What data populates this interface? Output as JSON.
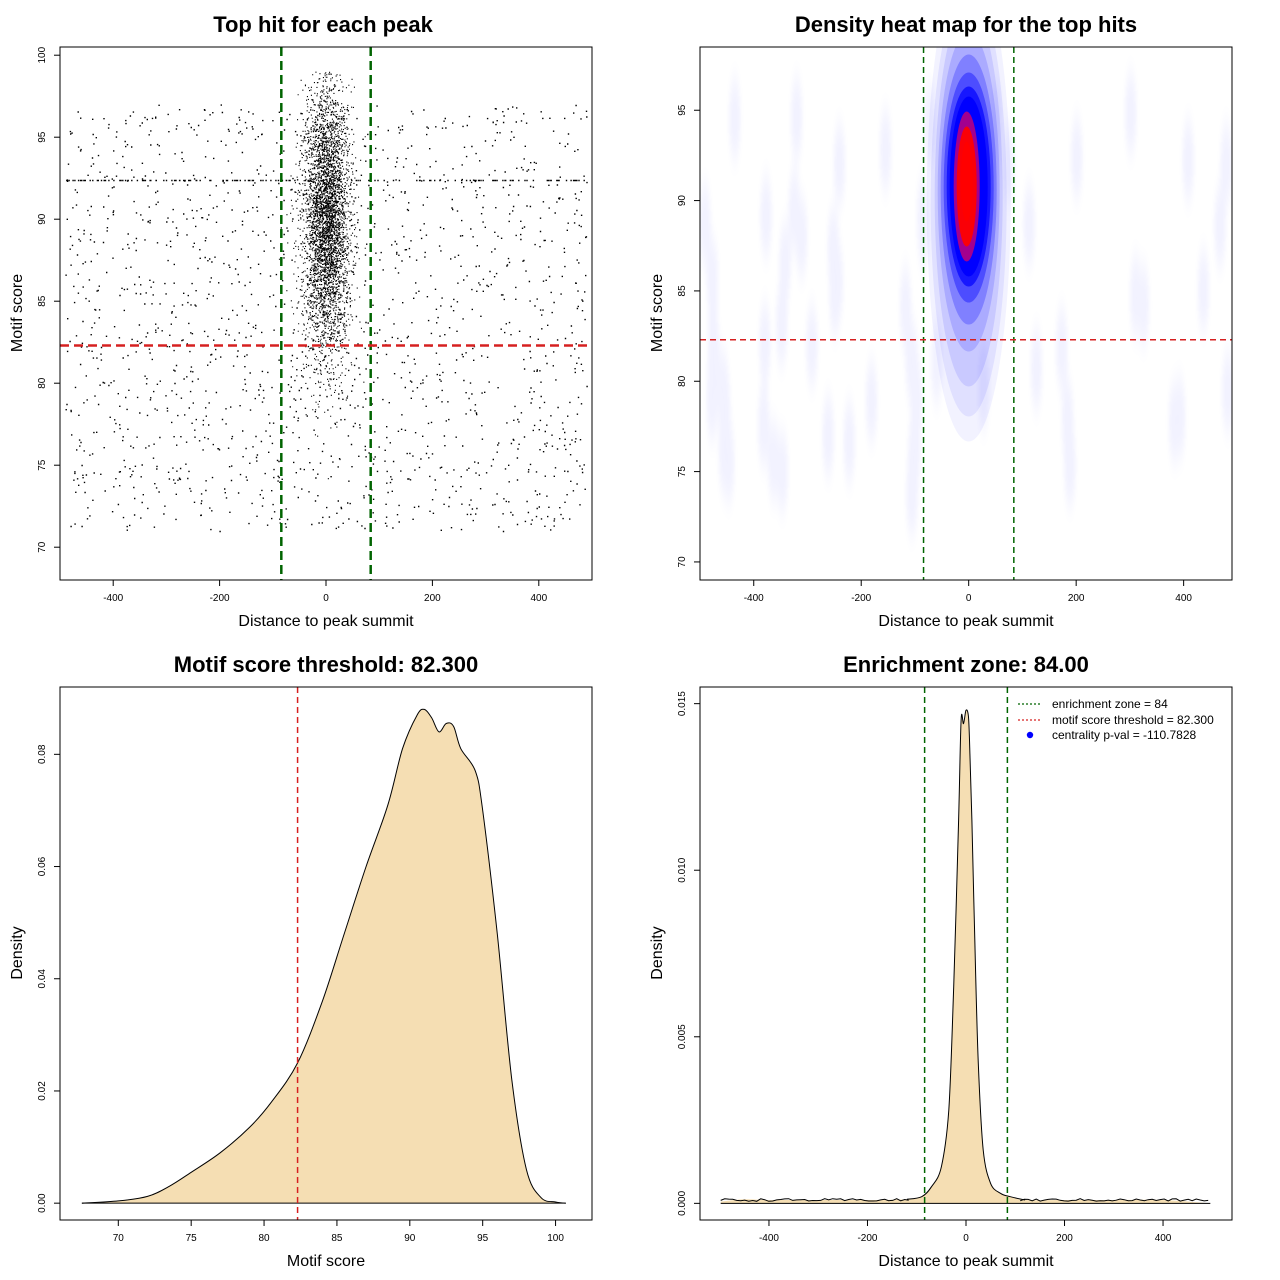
{
  "colors": {
    "zone_line": "#006400",
    "threshold_line": "#d62020",
    "density_fill": "#f5deb3",
    "point": "#000000",
    "heat_low": "#ffffff",
    "heat_mid": "#0000ff",
    "heat_high": "#ff0000",
    "legend_point": "#0000ff"
  },
  "chart_data": [
    {
      "type": "scatter",
      "title": "Top hit for each peak",
      "xlabel": "Distance to peak summit",
      "ylabel": "Motif score",
      "xlim": [
        -500,
        500
      ],
      "ylim": [
        68,
        100.5
      ],
      "xticks": [
        -400,
        -200,
        0,
        200,
        400
      ],
      "yticks": [
        70,
        75,
        80,
        85,
        90,
        95,
        100
      ],
      "vlines": [
        -84,
        84
      ],
      "hline": 82.3,
      "points": {
        "central": {
          "x_mean": 0,
          "x_sd": 22,
          "y_mean": 90,
          "y_sd": 4.2,
          "y_min": 73.5,
          "y_max": 99,
          "count": 9000
        },
        "background": {
          "x_range": [
            -490,
            490
          ],
          "y_range": [
            71,
            97
          ],
          "count": 1700
        },
        "dense_row_y": 92.4
      }
    },
    {
      "type": "heatmap",
      "title": "Density heat map for the top hits",
      "xlabel": "Distance to peak summit",
      "ylabel": "Motif score",
      "xlim": [
        -500,
        490
      ],
      "ylim": [
        69,
        98.5
      ],
      "xticks": [
        -400,
        -200,
        0,
        200,
        400
      ],
      "yticks": [
        70,
        75,
        80,
        85,
        90,
        95
      ],
      "vlines": [
        -84,
        84
      ],
      "hline": 82.3,
      "peak": {
        "x": 0,
        "y": 90.5
      }
    },
    {
      "type": "area",
      "title": "Motif score threshold: 82.300",
      "xlabel": "Motif score",
      "ylabel": "Density",
      "xlim": [
        66,
        102.5
      ],
      "ylim": [
        -0.003,
        0.092
      ],
      "xticks": [
        70,
        75,
        80,
        85,
        90,
        95,
        100
      ],
      "yticks": [
        0.0,
        0.02,
        0.04,
        0.06,
        0.08
      ],
      "ytick_labels": [
        "0.00",
        "0.02",
        "0.04",
        "0.06",
        "0.08"
      ],
      "vline": 82.3,
      "x": [
        67.5,
        70,
        72,
        73.5,
        75,
        77,
        79,
        80.5,
        82.3,
        84,
        85.5,
        87,
        88.5,
        89.5,
        90.5,
        91,
        91.5,
        92,
        92.5,
        93,
        93.5,
        94.5,
        95,
        96,
        97,
        98,
        99,
        100,
        100.7
      ],
      "y": [
        0.0,
        0.0004,
        0.0012,
        0.003,
        0.0055,
        0.009,
        0.0135,
        0.018,
        0.025,
        0.036,
        0.048,
        0.06,
        0.071,
        0.081,
        0.087,
        0.088,
        0.0865,
        0.084,
        0.0855,
        0.085,
        0.081,
        0.077,
        0.07,
        0.048,
        0.022,
        0.006,
        0.001,
        0.0002,
        0.0
      ]
    },
    {
      "type": "area",
      "title": "Enrichment zone: 84.00",
      "xlabel": "Distance to peak summit",
      "ylabel": "Density",
      "xlim": [
        -540,
        540
      ],
      "ylim": [
        -0.0005,
        0.0155
      ],
      "xticks": [
        -400,
        -200,
        0,
        200,
        400
      ],
      "yticks": [
        0.0,
        0.005,
        0.01,
        0.015
      ],
      "ytick_labels": [
        "0.000",
        "0.005",
        "0.010",
        "0.015"
      ],
      "vlines": [
        -84,
        84
      ],
      "legend": [
        "enrichment zone = 84",
        "motif score threshold = 82.300",
        "centrality p-val = -110.7828"
      ],
      "legend_position": "top-right",
      "x": [
        -498,
        -450,
        -400,
        -300,
        -200,
        -120,
        -90,
        -70,
        -50,
        -35,
        -25,
        -15,
        -10,
        -5,
        0,
        5,
        8,
        12,
        18,
        25,
        35,
        50,
        70,
        90,
        120,
        200,
        300,
        400,
        496
      ],
      "y": [
        5e-05,
        0.00012,
        0.0001,
        0.0001,
        0.0001,
        0.00012,
        0.0002,
        0.0005,
        0.0011,
        0.0028,
        0.0065,
        0.0115,
        0.0145,
        0.0144,
        0.0148,
        0.0146,
        0.0135,
        0.0115,
        0.0078,
        0.0042,
        0.0016,
        0.0006,
        0.0003,
        0.0002,
        0.0001,
        0.0001,
        0.0001,
        0.0001,
        0.0
      ]
    }
  ]
}
